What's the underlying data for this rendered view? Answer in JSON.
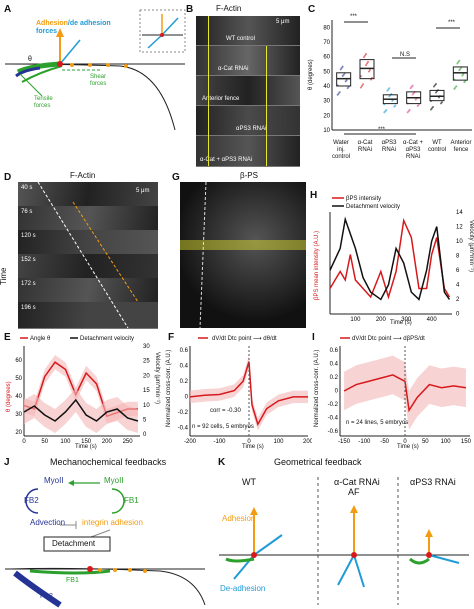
{
  "panels": {
    "A": {
      "label": "A",
      "adhesion": "Adhesion",
      "de_adhesion": "/de adhesion",
      "forces": "forces",
      "theta": "θ",
      "shear": "Shear",
      "shear2": "forces",
      "tensile": "Tensile",
      "tensile2": "forces"
    },
    "B": {
      "label": "B",
      "title": "F-Actin",
      "scale": "5 μm",
      "rows": [
        "WT control",
        "α-Cat RNAi",
        "Anterior fence",
        "αPS3 RNAi",
        "α-Cat + αPS3 RNAi"
      ]
    },
    "C": {
      "label": "C",
      "ylabel": "θ (degrees)",
      "ticks": [
        "80",
        "70",
        "60",
        "50",
        "40",
        "30",
        "20",
        "10"
      ],
      "ns": "N.S",
      "groups": [
        "Water inj. control",
        "α-Cat RNAi",
        "αPS3 RNAi",
        "α-Cat + αPS3 RNAi",
        "WT control",
        "Anterior fence"
      ],
      "stars": "***"
    },
    "D": {
      "label": "D",
      "title": "F-Actin",
      "scale": "5 μm",
      "axis": "Time",
      "times": [
        "40 s",
        "76 s",
        "120 s",
        "152 s",
        "172 s",
        "196 s"
      ]
    },
    "G": {
      "label": "G",
      "title": "β-PS"
    },
    "H": {
      "label": "H",
      "legend1": "βPS intensity",
      "legend2": "Detachment velocity",
      "ylabel": "βPS mean intensity (A.U.)",
      "y2label": "Velocity (μm*min⁻¹)",
      "xlabel": "Time (s)",
      "xticks": [
        "100",
        "200",
        "300",
        "400"
      ],
      "y2ticks": [
        "14",
        "12",
        "10",
        "8",
        "6",
        "4",
        "2",
        "0"
      ]
    },
    "E": {
      "label": "E",
      "legend1": "Angle θ",
      "legend2": "Detachment velocity",
      "ylabel": "θ (degrees)",
      "y2label": "Velocity (μm*min⁻¹)",
      "xlabel": "Time (s)",
      "xticks": [
        "0",
        "50",
        "100",
        "150",
        "200",
        "250"
      ],
      "yticks": [
        "60",
        "50",
        "40",
        "30",
        "20"
      ],
      "y2ticks": [
        "30",
        "25",
        "20",
        "15",
        "10",
        "5",
        "0"
      ]
    },
    "F": {
      "label": "F",
      "legend": "dV/dt Dtc point ⟶ dθ/dt",
      "ylabel": "Normalized cross-corr. (A.U.)",
      "xlabel": "Time (s)",
      "xticks": [
        "-200",
        "-100",
        "0",
        "100",
        "200"
      ],
      "yticks": [
        "0.6",
        "0.4",
        "0.2",
        "0",
        "-0.2",
        "-0.4"
      ],
      "corr": "corr = -0.30",
      "n": "n = 92 cells, 5 embryos"
    },
    "I": {
      "label": "I",
      "legend": "dV/dt Dtc point ⟶ dβPS/dt",
      "ylabel": "Normalized cross-corr. (A.U.)",
      "xlabel": "Time (s)",
      "xticks": [
        "-150",
        "-100",
        "-50",
        "0",
        "50",
        "100",
        "150"
      ],
      "yticks": [
        "0.6",
        "0.4",
        "0.2",
        "0",
        "-0.2",
        "-0.4",
        "-0.6"
      ],
      "n": "n = 24 lines, 5 embryos"
    },
    "J": {
      "label": "J",
      "title": "Mechanochemical feedbacks",
      "myoll1": "MyoII",
      "myoll2": "MyoII",
      "fb2": "FB2",
      "fb1": "FB1",
      "advection": "Advection",
      "integrin": "integrin adhesion",
      "detachment": "Detachment",
      "fb2b": "FB2",
      "fb1b": "FB1"
    },
    "K": {
      "label": "K",
      "title": "Geometrical feedback",
      "wt": "WT",
      "acat": "α-Cat RNAi",
      "af": "AF",
      "aps3": "αPS3 RNAi",
      "adhesion": "Adhesion",
      "deadhesion": "De-adhesion"
    }
  },
  "colors": {
    "red": "#d7191c",
    "black": "#111111",
    "orange": "#f39c12",
    "blue": "#1f9bd7",
    "green": "#2ca02c",
    "navy": "#253494",
    "pink": "#d6408f",
    "purple": "#8e44ad",
    "yellow": "#e8e82a"
  },
  "chart_data": [
    {
      "type": "box",
      "panel": "C",
      "categories": [
        "Water inj. control",
        "α-Cat RNAi",
        "αPS3 RNAi",
        "α-Cat + αPS3 RNAi",
        "WT control",
        "Anterior fence"
      ],
      "medians": [
        45,
        52,
        31,
        32,
        33,
        49
      ],
      "q1": [
        40,
        45,
        28,
        28,
        30,
        44
      ],
      "q3": [
        49,
        58,
        34,
        36,
        37,
        53
      ],
      "ylim": [
        10,
        85
      ]
    },
    {
      "type": "line",
      "panel": "H",
      "x": [
        0,
        40,
        60,
        80,
        100,
        130,
        160,
        200,
        230,
        260,
        290,
        320,
        350,
        380,
        400,
        420,
        450,
        470
      ],
      "series": [
        {
          "name": "βPS intensity",
          "values": [
            3,
            5,
            4,
            7,
            4,
            3,
            2,
            5,
            2,
            5,
            11,
            9,
            3,
            3,
            7,
            9,
            3,
            2
          ]
        },
        {
          "name": "Detachment velocity",
          "values": [
            6,
            9,
            13,
            11,
            9,
            5,
            3,
            2,
            4,
            9,
            7,
            3,
            2,
            6,
            10,
            12,
            3,
            2
          ]
        }
      ]
    },
    {
      "type": "line",
      "panel": "E",
      "x": [
        0,
        25,
        50,
        75,
        100,
        125,
        150,
        175,
        200,
        225,
        250,
        275
      ],
      "series": [
        {
          "name": "Angle θ",
          "values": [
            32,
            30,
            48,
            56,
            52,
            38,
            50,
            44,
            26,
            28,
            30,
            30
          ]
        },
        {
          "name": "Detachment velocity",
          "values": [
            8,
            10,
            7,
            5,
            8,
            12,
            7,
            5,
            8,
            9,
            6,
            5
          ]
        }
      ]
    },
    {
      "type": "line",
      "panel": "F",
      "x": [
        -200,
        -150,
        -100,
        -50,
        -20,
        0,
        10,
        30,
        60,
        100,
        150,
        200
      ],
      "series": [
        {
          "name": "dV/dt Dtc point ⟶ dθ/dt",
          "values": [
            0,
            0.02,
            0.03,
            0.08,
            0.2,
            0.45,
            -0.1,
            -0.35,
            -0.15,
            -0.05,
            0,
            0
          ]
        }
      ]
    },
    {
      "type": "line",
      "panel": "I",
      "x": [
        -150,
        -120,
        -90,
        -60,
        -30,
        0,
        10,
        30,
        60,
        90,
        120,
        150
      ],
      "series": [
        {
          "name": "dV/dt Dtc point ⟶ dβPS/dt",
          "values": [
            0,
            0.1,
            0.15,
            0.2,
            0.25,
            0.15,
            -0.3,
            -0.1,
            0.1,
            0.05,
            0.08,
            0.05
          ]
        }
      ]
    }
  ]
}
